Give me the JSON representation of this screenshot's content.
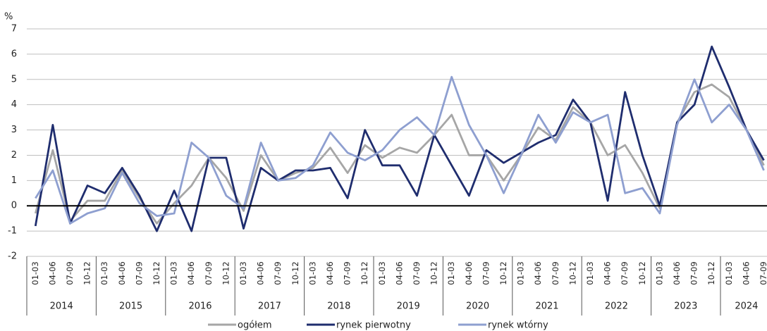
{
  "chart_data": {
    "type": "line",
    "y_unit": "%",
    "categories": [
      "01-03",
      "04-06",
      "07-09",
      "10-12",
      "01-03",
      "04-06",
      "07-09",
      "10-12",
      "01-03",
      "04-06",
      "07-09",
      "10-12",
      "01-03",
      "04-06",
      "07-09",
      "10-12",
      "01-03",
      "04-06",
      "07-09",
      "10-12",
      "01-03",
      "04-06",
      "07-09",
      "10-12",
      "01-03",
      "04-06",
      "07-09",
      "10-12",
      "01-03",
      "04-06",
      "07-09",
      "10-12",
      "01-03",
      "04-06",
      "07-09",
      "10-12",
      "01-03",
      "04-06",
      "07-09",
      "10-12",
      "01-03",
      "04-06",
      "07-09"
    ],
    "years": [
      "2014",
      "2015",
      "2016",
      "2017",
      "2018",
      "2019",
      "2020",
      "2021",
      "2022",
      "2023",
      "2024"
    ],
    "series": [
      {
        "name": "ogółem",
        "color": "#a6a6a6",
        "values": [
          -0.3,
          2.2,
          -0.6,
          0.2,
          0.2,
          1.4,
          0.3,
          -0.7,
          0.1,
          0.8,
          1.9,
          1.1,
          -0.2,
          2.0,
          1.0,
          1.3,
          1.5,
          2.3,
          1.3,
          2.4,
          1.9,
          2.3,
          2.1,
          2.8,
          3.6,
          2.0,
          2.0,
          1.0,
          2.0,
          3.1,
          2.6,
          3.9,
          3.3,
          2.0,
          2.4,
          1.3,
          -0.1,
          3.3,
          4.5,
          4.8,
          4.3,
          3.0,
          1.6
        ]
      },
      {
        "name": "rynek pierwotny",
        "color": "#1f2d6e",
        "values": [
          -0.8,
          3.2,
          -0.7,
          0.8,
          0.5,
          1.5,
          0.4,
          -1.0,
          0.6,
          -1.0,
          1.9,
          1.9,
          -0.9,
          1.5,
          1.0,
          1.4,
          1.4,
          1.5,
          0.3,
          3.0,
          1.6,
          1.6,
          0.4,
          2.8,
          1.6,
          0.4,
          2.2,
          1.7,
          2.1,
          2.5,
          2.8,
          4.2,
          3.3,
          0.2,
          4.5,
          2.0,
          0.0,
          3.3,
          4.0,
          6.3,
          4.7,
          3.0,
          1.8
        ]
      },
      {
        "name": "rynek wtórny",
        "color": "#8e9fd0",
        "values": [
          0.3,
          1.4,
          -0.7,
          -0.3,
          -0.1,
          1.3,
          0.1,
          -0.4,
          -0.3,
          2.5,
          1.9,
          0.4,
          -0.1,
          2.5,
          1.0,
          1.1,
          1.6,
          2.9,
          2.1,
          1.8,
          2.2,
          3.0,
          3.5,
          2.8,
          5.1,
          3.2,
          2.0,
          0.5,
          2.0,
          3.6,
          2.5,
          3.7,
          3.3,
          3.6,
          0.5,
          0.7,
          -0.3,
          3.2,
          5.0,
          3.3,
          4.0,
          3.0,
          1.4
        ]
      }
    ],
    "ylim": [
      -2,
      7
    ],
    "yticks": [
      -2,
      -1,
      0,
      1,
      2,
      3,
      4,
      5,
      6,
      7
    ],
    "grid": true,
    "legend": "bottom"
  }
}
